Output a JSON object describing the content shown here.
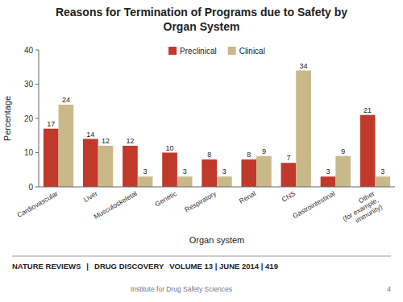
{
  "chart_data": {
    "type": "bar",
    "title": "Reasons for Termination of Programs due to Safety by\nOrgan System",
    "x_label": "Organ system",
    "y_label": "Percentage",
    "categories": [
      "Cardiovascular",
      "Liver",
      "Musculoskeletal",
      "Genetic",
      "Respiratory",
      "Renal",
      "CNS",
      "Gastrointestinal",
      "Other\n(for example,\nimmunity)"
    ],
    "series": [
      {
        "name": "Preclinical",
        "color": "#c0392b",
        "values": [
          17,
          14,
          12,
          10,
          8,
          8,
          7,
          3,
          21
        ]
      },
      {
        "name": "Clinical",
        "color": "#c9b98a",
        "values": [
          24,
          12,
          3,
          3,
          3,
          9,
          34,
          9,
          3
        ]
      }
    ],
    "ylim": [
      0,
      40
    ],
    "yticks": [
      0,
      10,
      20,
      30,
      40
    ],
    "grid": false,
    "legend": "top",
    "data_labels": true,
    "footer": [
      "NATURE REVIEWS",
      "|",
      "DRUG DISCOVERY",
      "VOLUME 13 | JUNE 2014 | 419"
    ],
    "footer_note": [
      "Institute for Drug Safety Sciences",
      "4"
    ]
  }
}
